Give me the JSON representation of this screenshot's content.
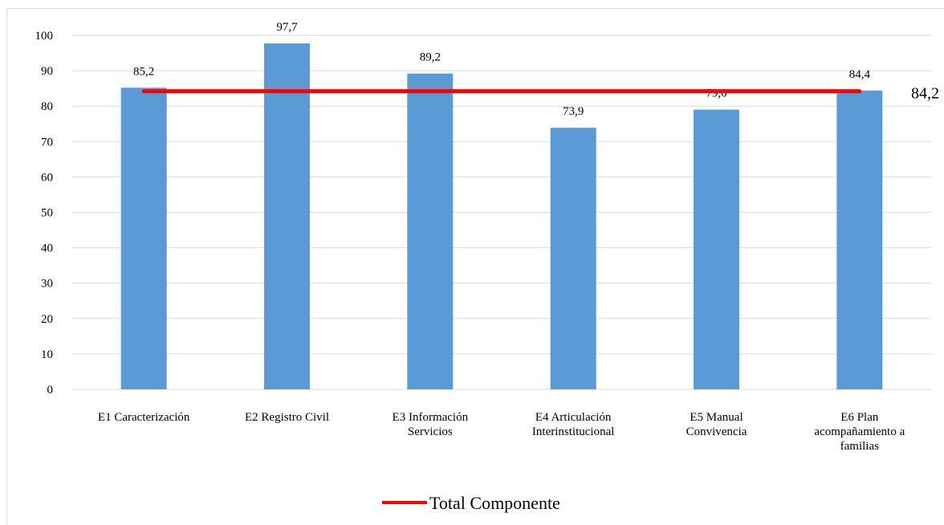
{
  "chart_data": {
    "type": "bar",
    "categories": [
      [
        "E1 Caracterización"
      ],
      [
        "E2 Registro Civil"
      ],
      [
        "E3 Información",
        "Servicios"
      ],
      [
        "E4 Articulación",
        "Interinstitucional"
      ],
      [
        "E5 Manual",
        "Convivencia"
      ],
      [
        "E6 Plan",
        "acompañamiento a",
        "familias"
      ]
    ],
    "series": [
      {
        "values": [
          85.2,
          97.7,
          89.2,
          73.9,
          79.0,
          84.4
        ],
        "value_labels": [
          "85,2",
          "97,7",
          "89,2",
          "73,9",
          "79,0",
          "84,4"
        ],
        "color": "#5b9bd5"
      },
      {
        "name": "Total Componente",
        "kind": "line",
        "value": 84.2,
        "value_label": "84,2",
        "color": "#ff0000"
      }
    ],
    "ylim": [
      0,
      100
    ],
    "yticks": [
      0,
      10,
      20,
      30,
      40,
      50,
      60,
      70,
      80,
      90,
      100
    ],
    "grid": true,
    "legend_position": "bottom"
  }
}
